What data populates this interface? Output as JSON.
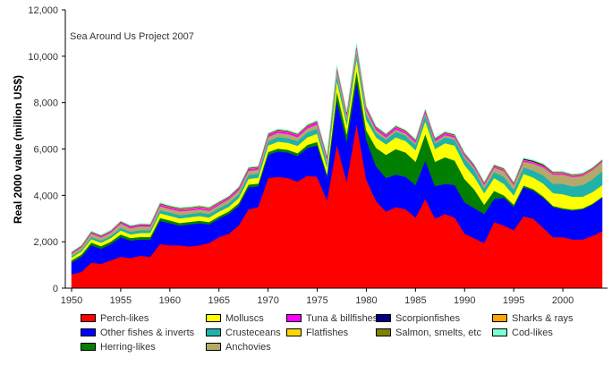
{
  "chart_data": {
    "type": "area",
    "stacked": true,
    "annotation": "Sea Around Us Project 2007",
    "xlabel": "",
    "ylabel": "Real 2000 value (million US$)",
    "xlim": [
      1950,
      2004
    ],
    "ylim": [
      0,
      12000
    ],
    "yticks": [
      "0",
      "2,000",
      "4,000",
      "6,000",
      "8,000",
      "10,000",
      "12,000"
    ],
    "ytick_values": [
      0,
      2000,
      4000,
      6000,
      8000,
      10000,
      12000
    ],
    "xticks": [
      "1950",
      "1955",
      "1960",
      "1965",
      "1970",
      "1975",
      "1980",
      "1985",
      "1990",
      "1995",
      "2000"
    ],
    "xtick_values": [
      1950,
      1955,
      1960,
      1965,
      1970,
      1975,
      1980,
      1985,
      1990,
      1995,
      2000
    ],
    "grid": false,
    "legend_position": "bottom",
    "x": [
      1950,
      1951,
      1952,
      1953,
      1954,
      1955,
      1956,
      1957,
      1958,
      1959,
      1960,
      1961,
      1962,
      1963,
      1964,
      1965,
      1966,
      1967,
      1968,
      1969,
      1970,
      1971,
      1972,
      1973,
      1974,
      1975,
      1976,
      1977,
      1978,
      1979,
      1980,
      1981,
      1982,
      1983,
      1984,
      1985,
      1986,
      1987,
      1988,
      1989,
      1990,
      1991,
      1992,
      1993,
      1994,
      1995,
      1996,
      1997,
      1998,
      1999,
      2000,
      2001,
      2002,
      2003,
      2004
    ],
    "series": [
      {
        "name": "Perch-likes",
        "color": "#ff0000",
        "values": [
          600,
          700,
          1100,
          1050,
          1200,
          1350,
          1300,
          1400,
          1350,
          1900,
          1850,
          1850,
          1800,
          1850,
          1950,
          2200,
          2350,
          2700,
          3400,
          3500,
          4750,
          4800,
          4750,
          4600,
          4850,
          4800,
          3800,
          6200,
          4600,
          7100,
          4700,
          3750,
          3300,
          3500,
          3400,
          3050,
          3850,
          3000,
          3200,
          3050,
          2350,
          2150,
          1950,
          2850,
          2700,
          2500,
          3100,
          3000,
          2600,
          2200,
          2200,
          2100,
          2100,
          2250,
          2450
        ]
      },
      {
        "name": "Other fishes & inverts",
        "color": "#0000ff",
        "values": [
          500,
          650,
          750,
          650,
          700,
          850,
          750,
          700,
          750,
          1000,
          950,
          850,
          950,
          950,
          800,
          800,
          850,
          850,
          950,
          900,
          1000,
          1100,
          1100,
          1100,
          1200,
          1350,
          1000,
          1900,
          1700,
          1850,
          1700,
          1500,
          1450,
          1400,
          1400,
          1400,
          1650,
          1400,
          1300,
          1400,
          1350,
          1300,
          1250,
          1000,
          1200,
          1000,
          1250,
          1200,
          1300,
          1300,
          1200,
          1250,
          1300,
          1350,
          1450
        ]
      },
      {
        "name": "Herring-likes",
        "color": "#007f00",
        "values": [
          100,
          100,
          120,
          110,
          110,
          120,
          110,
          110,
          110,
          130,
          120,
          110,
          110,
          110,
          100,
          100,
          110,
          110,
          120,
          110,
          120,
          120,
          120,
          120,
          130,
          160,
          120,
          400,
          350,
          450,
          400,
          800,
          1000,
          1100,
          1050,
          1000,
          1150,
          1050,
          1150,
          1050,
          1000,
          800,
          400,
          350,
          100,
          100,
          80,
          70,
          60,
          50,
          50,
          40,
          40,
          40,
          40
        ]
      },
      {
        "name": "Molluscs",
        "color": "#ffff00",
        "values": [
          120,
          130,
          150,
          150,
          150,
          170,
          160,
          170,
          180,
          200,
          200,
          200,
          200,
          200,
          200,
          200,
          200,
          220,
          240,
          250,
          280,
          300,
          300,
          320,
          330,
          350,
          300,
          450,
          400,
          500,
          450,
          450,
          450,
          500,
          500,
          500,
          550,
          550,
          600,
          650,
          600,
          550,
          500,
          550,
          500,
          400,
          500,
          500,
          550,
          550,
          600,
          550,
          500,
          500,
          500
        ]
      },
      {
        "name": "Crusteceans",
        "color": "#20b2aa",
        "values": [
          60,
          70,
          90,
          90,
          100,
          110,
          110,
          120,
          110,
          130,
          140,
          140,
          140,
          150,
          150,
          150,
          160,
          170,
          180,
          180,
          190,
          200,
          200,
          200,
          210,
          220,
          200,
          260,
          220,
          260,
          250,
          200,
          200,
          250,
          220,
          230,
          270,
          230,
          250,
          250,
          300,
          300,
          200,
          250,
          300,
          250,
          280,
          300,
          350,
          400,
          450,
          450,
          500,
          550,
          600
        ]
      },
      {
        "name": "Anchovies",
        "color": "#b5a96a",
        "values": [
          100,
          110,
          150,
          140,
          140,
          190,
          160,
          170,
          160,
          180,
          160,
          170,
          150,
          150,
          140,
          140,
          160,
          160,
          170,
          170,
          180,
          180,
          180,
          170,
          170,
          180,
          150,
          200,
          180,
          200,
          180,
          120,
          100,
          100,
          100,
          90,
          100,
          100,
          100,
          100,
          100,
          100,
          150,
          200,
          250,
          200,
          250,
          300,
          350,
          400,
          400,
          400,
          400,
          400,
          400
        ]
      },
      {
        "name": "Tuna & billfishes",
        "color": "#ff00ff",
        "values": [
          40,
          40,
          50,
          50,
          50,
          60,
          60,
          60,
          60,
          70,
          70,
          70,
          70,
          70,
          70,
          70,
          70,
          80,
          80,
          80,
          90,
          90,
          90,
          90,
          90,
          100,
          90,
          100,
          100,
          100,
          100,
          90,
          90,
          90,
          80,
          80,
          90,
          80,
          80,
          70,
          70,
          60,
          60,
          60,
          60,
          50,
          60,
          60,
          60,
          60,
          60,
          50,
          50,
          40,
          40
        ]
      },
      {
        "name": "Flatfishes",
        "color": "#ffd700",
        "values": [
          10,
          10,
          10,
          10,
          10,
          10,
          10,
          10,
          10,
          20,
          20,
          30,
          30,
          30,
          30,
          20,
          20,
          20,
          20,
          20,
          20,
          20,
          20,
          20,
          20,
          20,
          20,
          20,
          20,
          20,
          20,
          20,
          20,
          20,
          20,
          20,
          20,
          20,
          20,
          20,
          20,
          20,
          20,
          20,
          20,
          20,
          20,
          20,
          20,
          20,
          20,
          20,
          20,
          20,
          20
        ]
      },
      {
        "name": "Scorpionfishes",
        "color": "#000080",
        "values": [
          10,
          10,
          10,
          10,
          10,
          10,
          10,
          10,
          10,
          20,
          20,
          20,
          20,
          20,
          20,
          20,
          20,
          20,
          20,
          20,
          20,
          20,
          20,
          20,
          20,
          20,
          20,
          20,
          20,
          20,
          20,
          20,
          20,
          20,
          20,
          20,
          20,
          20,
          20,
          20,
          20,
          20,
          20,
          20,
          20,
          20,
          40,
          40,
          40,
          20,
          20,
          20,
          20,
          20,
          20
        ]
      },
      {
        "name": "Salmon, smelts, etc",
        "color": "#808000",
        "values": [
          10,
          10,
          10,
          10,
          10,
          10,
          10,
          10,
          10,
          10,
          10,
          10,
          10,
          10,
          10,
          10,
          10,
          10,
          10,
          10,
          10,
          10,
          10,
          10,
          10,
          10,
          10,
          10,
          10,
          10,
          10,
          10,
          10,
          10,
          10,
          10,
          10,
          10,
          10,
          10,
          10,
          10,
          10,
          10,
          10,
          10,
          10,
          10,
          10,
          10,
          10,
          10,
          10,
          10,
          10
        ]
      },
      {
        "name": "Sharks & rays",
        "color": "#ffa500",
        "values": [
          10,
          10,
          10,
          10,
          10,
          10,
          10,
          10,
          10,
          10,
          10,
          10,
          10,
          10,
          10,
          10,
          10,
          10,
          10,
          10,
          10,
          10,
          10,
          10,
          10,
          10,
          10,
          10,
          10,
          10,
          10,
          10,
          10,
          10,
          10,
          10,
          10,
          10,
          10,
          10,
          10,
          10,
          10,
          10,
          10,
          10,
          10,
          10,
          10,
          10,
          10,
          10,
          10,
          10,
          10
        ]
      },
      {
        "name": "Cod-likes",
        "color": "#7fffd4",
        "values": [
          20,
          20,
          20,
          20,
          20,
          20,
          20,
          20,
          20,
          20,
          20,
          20,
          20,
          20,
          20,
          20,
          20,
          20,
          20,
          20,
          20,
          20,
          20,
          20,
          20,
          20,
          20,
          20,
          20,
          30,
          20,
          20,
          20,
          20,
          20,
          20,
          20,
          20,
          20,
          20,
          20,
          20,
          20,
          20,
          20,
          20,
          20,
          20,
          20,
          20,
          20,
          20,
          20,
          20,
          20
        ]
      }
    ]
  },
  "legend": {
    "items": [
      {
        "label": "Perch-likes",
        "color": "#ff0000"
      },
      {
        "label": "Molluscs",
        "color": "#ffff00"
      },
      {
        "label": "Tuna & billfishes",
        "color": "#ff00ff"
      },
      {
        "label": "Scorpionfishes",
        "color": "#000080"
      },
      {
        "label": "Sharks & rays",
        "color": "#ffa500"
      },
      {
        "label": "Other fishes & inverts",
        "color": "#0000ff"
      },
      {
        "label": "Crusteceans",
        "color": "#20b2aa"
      },
      {
        "label": "Flatfishes",
        "color": "#ffd700"
      },
      {
        "label": "Salmon, smelts, etc",
        "color": "#808000"
      },
      {
        "label": "Cod-likes",
        "color": "#7fffd4"
      },
      {
        "label": "Herring-likes",
        "color": "#007f00"
      },
      {
        "label": "Anchovies",
        "color": "#b5a96a"
      }
    ]
  }
}
